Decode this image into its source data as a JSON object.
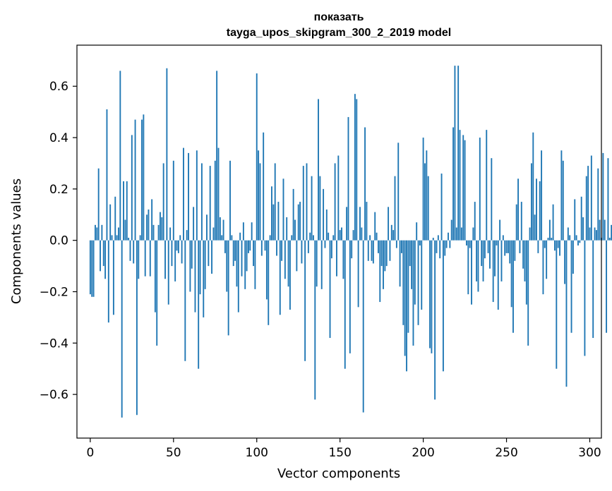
{
  "chart_data": {
    "type": "bar",
    "title": "показать",
    "subtitle": "tayga_upos_skipgram_300_2_2019 model",
    "xlabel": "Vector components",
    "ylabel": "Components values",
    "xlim": [
      -8,
      307
    ],
    "ylim": [
      -0.77,
      0.76
    ],
    "xticks": [
      0,
      50,
      100,
      150,
      200,
      250,
      300
    ],
    "xtick_labels": [
      "0",
      "50",
      "100",
      "150",
      "200",
      "250",
      "300"
    ],
    "yticks": [
      -0.6,
      -0.4,
      -0.2,
      0.0,
      0.2,
      0.4,
      0.6
    ],
    "ytick_labels": [
      "−0.6",
      "−0.4",
      "−0.2",
      "0.0",
      "0.2",
      "0.4",
      "0.6"
    ],
    "grid": false,
    "bar_color": "#1f77b4",
    "series": [
      {
        "values": [
          -0.21,
          -0.22,
          -0.22,
          0.06,
          0.05,
          0.28,
          -0.12,
          0.06,
          -0.1,
          -0.15,
          0.51,
          -0.32,
          0.14,
          0.02,
          -0.29,
          0.17,
          0.02,
          0.05,
          0.66,
          -0.69,
          0.23,
          0.08,
          0.23,
          0.01,
          -0.08,
          0.41,
          -0.09,
          0.47,
          -0.68,
          -0.15,
          0.02,
          0.47,
          0.49,
          -0.14,
          0.1,
          0.12,
          -0.14,
          0.16,
          0.06,
          -0.28,
          -0.41,
          0.06,
          0.11,
          0.09,
          0.3,
          -0.15,
          0.67,
          -0.25,
          0.05,
          -0.1,
          0.31,
          -0.16,
          -0.04,
          -0.05,
          0.02,
          -0.09,
          0.36,
          -0.47,
          0.04,
          0.34,
          -0.2,
          -0.11,
          0.13,
          -0.28,
          0.35,
          -0.5,
          -0.21,
          0.3,
          -0.3,
          -0.19,
          0.1,
          -0.1,
          0.29,
          -0.13,
          0.05,
          0.31,
          0.66,
          0.36,
          0.09,
          0.02,
          0.08,
          -0.05,
          -0.2,
          -0.37,
          0.31,
          0.02,
          -0.1,
          -0.08,
          -0.18,
          -0.28,
          0.03,
          -0.14,
          0.07,
          -0.19,
          -0.12,
          -0.05,
          -0.04,
          0.07,
          -0.1,
          -0.19,
          0.65,
          0.35,
          0.3,
          -0.06,
          0.42,
          -0.04,
          -0.23,
          -0.33,
          0.02,
          0.21,
          0.14,
          0.3,
          -0.06,
          0.15,
          -0.29,
          -0.08,
          0.24,
          -0.15,
          0.09,
          -0.18,
          -0.27,
          0.02,
          0.2,
          0.08,
          -0.12,
          0.14,
          0.15,
          -0.09,
          0.29,
          -0.47,
          0.3,
          -0.05,
          0.03,
          0.25,
          0.02,
          -0.62,
          -0.18,
          0.55,
          0.25,
          -0.19,
          0.2,
          -0.03,
          0.12,
          0.03,
          -0.38,
          -0.07,
          0.02,
          0.3,
          -0.14,
          0.33,
          0.04,
          0.05,
          -0.15,
          -0.5,
          0.13,
          0.48,
          -0.44,
          -0.07,
          0.04,
          0.57,
          0.55,
          -0.26,
          0.13,
          0.05,
          -0.67,
          0.44,
          0.15,
          -0.08,
          0.02,
          -0.08,
          -0.09,
          0.11,
          0.03,
          -0.05,
          -0.24,
          -0.1,
          -0.19,
          -0.12,
          -0.1,
          0.13,
          -0.08,
          0.06,
          0.04,
          0.25,
          -0.03,
          0.38,
          -0.18,
          -0.05,
          -0.33,
          -0.45,
          -0.51,
          -0.36,
          -0.1,
          -0.19,
          -0.41,
          -0.25,
          0.07,
          -0.33,
          -0.02,
          -0.27,
          0.4,
          0.3,
          0.35,
          0.25,
          -0.42,
          -0.44,
          0.01,
          -0.62,
          -0.05,
          0.02,
          -0.07,
          0.26,
          -0.51,
          -0.06,
          -0.03,
          0.03,
          -0.03,
          0.08,
          0.44,
          0.68,
          0.05,
          0.68,
          0.43,
          0.05,
          0.41,
          0.39,
          -0.02,
          -0.21,
          -0.03,
          -0.25,
          0.05,
          0.15,
          -0.16,
          -0.2,
          0.4,
          -0.1,
          -0.16,
          -0.07,
          0.43,
          -0.05,
          -0.11,
          0.32,
          -0.24,
          -0.14,
          -0.02,
          -0.27,
          0.08,
          -0.16,
          0.02,
          -0.06,
          -0.05,
          -0.05,
          -0.09,
          -0.26,
          -0.36,
          -0.08,
          0.14,
          0.24,
          -0.05,
          0.15,
          -0.11,
          -0.16,
          -0.25,
          -0.41,
          0.05,
          0.3,
          0.42,
          0.1,
          0.24,
          -0.05,
          0.23,
          0.35,
          -0.21,
          -0.03,
          -0.15,
          0.01,
          0.08,
          0.01,
          0.14,
          -0.04,
          -0.5,
          -0.03,
          -0.06,
          0.35,
          0.31,
          -0.17,
          -0.57,
          0.05,
          0.02,
          -0.36,
          -0.13,
          0.16,
          0.02,
          -0.02,
          -0.01,
          0.17,
          0.09,
          -0.45,
          0.25,
          0.29,
          0.05,
          0.33,
          -0.38,
          0.05,
          0.04,
          0.28,
          0.08,
          0.01,
          0.34,
          0.08,
          -0.36,
          0.32,
          0.01,
          0.06
        ]
      }
    ]
  }
}
